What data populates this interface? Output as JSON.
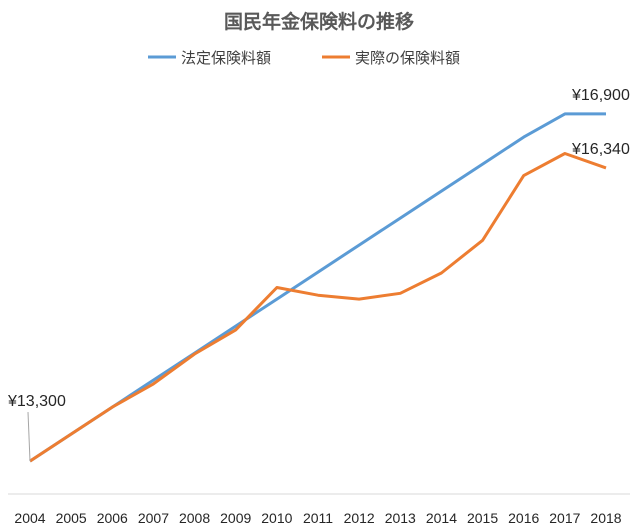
{
  "chart_data": {
    "type": "line",
    "title": "国民年金保険料の推移",
    "xlabel": "",
    "ylabel": "",
    "categories": [
      "2004",
      "2005",
      "2006",
      "2007",
      "2008",
      "2009",
      "2010",
      "2011",
      "2012",
      "2013",
      "2014",
      "2015",
      "2016",
      "2017",
      "2018"
    ],
    "series": [
      {
        "name": "法定保険料額",
        "color": "#5B9BD5",
        "values": [
          13300,
          13580,
          13860,
          14140,
          14420,
          14700,
          14980,
          15260,
          15540,
          15820,
          16100,
          16380,
          16660,
          16900,
          16900
        ]
      },
      {
        "name": "実際の保険料額",
        "color": "#ED7D31",
        "values": [
          13300,
          13580,
          13860,
          14100,
          14410,
          14660,
          15100,
          15020,
          14980,
          15040,
          15250,
          15590,
          16260,
          16490,
          16340
        ]
      }
    ],
    "ylim": [
      13000,
      17200
    ],
    "grid": false,
    "legend": "top",
    "annotations": [
      {
        "text": "¥13,300",
        "series": 0,
        "index": 0
      },
      {
        "text": "¥16,900",
        "series": 0,
        "index": 14
      },
      {
        "text": "¥16,340",
        "series": 1,
        "index": 14
      }
    ]
  }
}
